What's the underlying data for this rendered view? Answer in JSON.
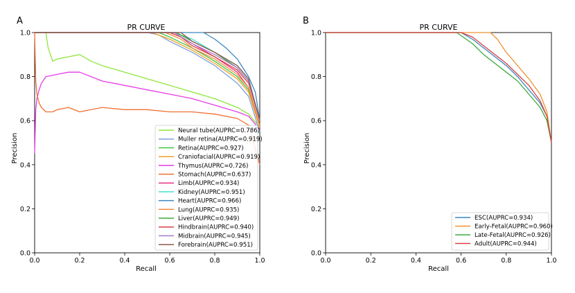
{
  "chart_data": [
    {
      "type": "line",
      "panel": "A",
      "title": "PR CURVE",
      "xlabel": "Recall",
      "ylabel": "Precision",
      "xlim": [
        0.0,
        1.0
      ],
      "ylim": [
        0.0,
        1.0
      ],
      "xticks": [
        "0.0",
        "0.2",
        "0.4",
        "0.6",
        "0.8",
        "1.0"
      ],
      "yticks": [
        "0.0",
        "0.2",
        "0.4",
        "0.6",
        "0.8",
        "1.0"
      ],
      "legend_position": "lower-right",
      "series": [
        {
          "name": "Neural tube(AUPRC=0.786)",
          "color": "#8ee63a",
          "x": [
            0,
            0.05,
            0.06,
            0.08,
            0.1,
            0.15,
            0.2,
            0.25,
            0.3,
            0.4,
            0.5,
            0.6,
            0.7,
            0.8,
            0.9,
            0.95,
            1.0
          ],
          "y": [
            1.0,
            1.0,
            0.93,
            0.87,
            0.88,
            0.89,
            0.9,
            0.87,
            0.85,
            0.82,
            0.79,
            0.76,
            0.73,
            0.7,
            0.66,
            0.63,
            0.57
          ]
        },
        {
          "name": "Muller retina(AUPRC=0.919)",
          "color": "#7d9fd8",
          "x": [
            0,
            0.5,
            0.55,
            0.6,
            0.7,
            0.8,
            0.9,
            0.95,
            1.0
          ],
          "y": [
            1.0,
            1.0,
            0.99,
            0.96,
            0.91,
            0.85,
            0.77,
            0.71,
            0.55
          ]
        },
        {
          "name": "Retina(AUPRC=0.927)",
          "color": "#3ec43e",
          "x": [
            0,
            0.55,
            0.6,
            0.7,
            0.8,
            0.9,
            0.95,
            1.0
          ],
          "y": [
            1.0,
            1.0,
            0.98,
            0.93,
            0.87,
            0.8,
            0.74,
            0.58
          ]
        },
        {
          "name": "Craniofacial(AUPRC=0.919)",
          "color": "#f0a020",
          "x": [
            0,
            0.52,
            0.6,
            0.7,
            0.8,
            0.9,
            0.95,
            1.0
          ],
          "y": [
            1.0,
            1.0,
            0.97,
            0.92,
            0.86,
            0.79,
            0.73,
            0.57
          ]
        },
        {
          "name": "Thymus(AUPRC=0.726)",
          "color": "#e53ae5",
          "x": [
            0,
            0.005,
            0.01,
            0.02,
            0.03,
            0.05,
            0.1,
            0.15,
            0.2,
            0.3,
            0.4,
            0.5,
            0.6,
            0.7,
            0.8,
            0.9,
            0.95,
            1.0
          ],
          "y": [
            0.45,
            0.65,
            0.7,
            0.74,
            0.77,
            0.8,
            0.81,
            0.82,
            0.82,
            0.78,
            0.76,
            0.74,
            0.72,
            0.7,
            0.67,
            0.64,
            0.62,
            0.56
          ]
        },
        {
          "name": "Stomach(AUPRC=0.637)",
          "color": "#f07030",
          "x": [
            0,
            0.005,
            0.01,
            0.02,
            0.03,
            0.05,
            0.08,
            0.1,
            0.15,
            0.2,
            0.3,
            0.4,
            0.5,
            0.6,
            0.7,
            0.8,
            0.9,
            0.95,
            1.0
          ],
          "y": [
            1.0,
            0.78,
            0.72,
            0.68,
            0.66,
            0.64,
            0.64,
            0.65,
            0.66,
            0.64,
            0.66,
            0.65,
            0.65,
            0.64,
            0.64,
            0.63,
            0.61,
            0.58,
            0.4
          ]
        },
        {
          "name": "Limb(AUPRC=0.934)",
          "color": "#e8308a",
          "x": [
            0,
            0.6,
            0.65,
            0.7,
            0.8,
            0.9,
            0.95,
            1.0
          ],
          "y": [
            1.0,
            1.0,
            0.98,
            0.95,
            0.89,
            0.82,
            0.75,
            0.58
          ]
        },
        {
          "name": "Kidney(AUPRC=0.951)",
          "color": "#40e0d0",
          "x": [
            0,
            0.62,
            0.7,
            0.8,
            0.9,
            0.95,
            1.0
          ],
          "y": [
            1.0,
            1.0,
            0.97,
            0.91,
            0.85,
            0.79,
            0.6
          ]
        },
        {
          "name": "Heart(AUPRC=0.966)",
          "color": "#3a86c0",
          "x": [
            0,
            0.75,
            0.8,
            0.85,
            0.9,
            0.95,
            0.98,
            1.0
          ],
          "y": [
            1.0,
            1.0,
            0.97,
            0.93,
            0.88,
            0.8,
            0.73,
            0.6
          ]
        },
        {
          "name": "Lung(AUPRC=0.935)",
          "color": "#f08a3c",
          "x": [
            0,
            0.58,
            0.65,
            0.7,
            0.8,
            0.9,
            0.95,
            1.0
          ],
          "y": [
            1.0,
            1.0,
            0.97,
            0.93,
            0.88,
            0.81,
            0.75,
            0.58
          ]
        },
        {
          "name": "Liver(AUPRC=0.949)",
          "color": "#3caa3c",
          "x": [
            0,
            0.63,
            0.7,
            0.8,
            0.9,
            0.95,
            1.0
          ],
          "y": [
            1.0,
            1.0,
            0.96,
            0.91,
            0.84,
            0.78,
            0.6
          ]
        },
        {
          "name": "Hindbrain(AUPRC=0.940)",
          "color": "#d84040",
          "x": [
            0,
            0.6,
            0.65,
            0.7,
            0.8,
            0.9,
            0.95,
            1.0
          ],
          "y": [
            1.0,
            1.0,
            0.98,
            0.94,
            0.89,
            0.83,
            0.77,
            0.6
          ]
        },
        {
          "name": "Midbrain(AUPRC=0.945)",
          "color": "#a878c8",
          "x": [
            0,
            0.62,
            0.7,
            0.8,
            0.9,
            0.95,
            1.0
          ],
          "y": [
            1.0,
            1.0,
            0.95,
            0.9,
            0.84,
            0.78,
            0.6
          ]
        },
        {
          "name": "Forebrain(AUPRC=0.951)",
          "color": "#8c564b",
          "x": [
            0,
            0.65,
            0.7,
            0.8,
            0.9,
            0.95,
            1.0
          ],
          "y": [
            1.0,
            1.0,
            0.96,
            0.91,
            0.85,
            0.79,
            0.6
          ]
        }
      ]
    },
    {
      "type": "line",
      "panel": "B",
      "title": "PR CURVE",
      "xlabel": "Recall",
      "ylabel": "Precision",
      "xlim": [
        0.0,
        1.0
      ],
      "ylim": [
        0.0,
        1.0
      ],
      "xticks": [
        "0.0",
        "0.2",
        "0.4",
        "0.6",
        "0.8",
        "1.0"
      ],
      "yticks": [
        "0.0",
        "0.2",
        "0.4",
        "0.6",
        "0.8",
        "1.0"
      ],
      "legend_position": "lower-right",
      "series": [
        {
          "name": "ESC(AUPRC=0.934)",
          "color": "#3a86c0",
          "x": [
            0,
            0.6,
            0.65,
            0.7,
            0.75,
            0.8,
            0.85,
            0.9,
            0.95,
            0.98,
            1.0
          ],
          "y": [
            1.0,
            1.0,
            0.97,
            0.93,
            0.89,
            0.85,
            0.8,
            0.74,
            0.68,
            0.62,
            0.5
          ]
        },
        {
          "name": "Early-Fetal(AUPRC=0.960)",
          "color": "#f0922e",
          "x": [
            0,
            0.73,
            0.76,
            0.8,
            0.85,
            0.9,
            0.95,
            0.98,
            1.0
          ],
          "y": [
            1.0,
            1.0,
            0.97,
            0.91,
            0.85,
            0.79,
            0.72,
            0.64,
            0.5
          ]
        },
        {
          "name": "Late-Fetal(AUPRC=0.926)",
          "color": "#3caa3c",
          "x": [
            0,
            0.58,
            0.65,
            0.7,
            0.75,
            0.8,
            0.85,
            0.9,
            0.95,
            0.98,
            1.0
          ],
          "y": [
            1.0,
            1.0,
            0.95,
            0.9,
            0.86,
            0.82,
            0.78,
            0.72,
            0.66,
            0.6,
            0.5
          ]
        },
        {
          "name": "Adult(AUPRC=0.944)",
          "color": "#d84040",
          "x": [
            0,
            0.6,
            0.65,
            0.7,
            0.75,
            0.8,
            0.85,
            0.9,
            0.95,
            0.98,
            1.0
          ],
          "y": [
            1.0,
            1.0,
            0.98,
            0.94,
            0.9,
            0.86,
            0.81,
            0.76,
            0.69,
            0.62,
            0.5
          ]
        }
      ]
    }
  ]
}
